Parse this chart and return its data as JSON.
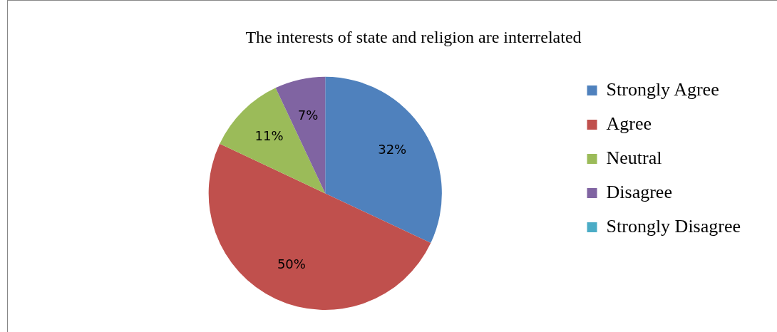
{
  "chart_data": {
    "type": "pie",
    "title": "The interests of state and religion are interrelated",
    "categories": [
      "Strongly Agree",
      "Agree",
      "Neutral",
      "Disagree",
      "Strongly Disagree"
    ],
    "values": [
      32,
      50,
      11,
      7,
      0
    ],
    "colors": [
      "#4f81bd",
      "#c0504d",
      "#9bbb59",
      "#8064a2",
      "#4bacc6"
    ],
    "value_labels": [
      "32%",
      "50%",
      "11%",
      "7%",
      null
    ],
    "legend": "right"
  }
}
